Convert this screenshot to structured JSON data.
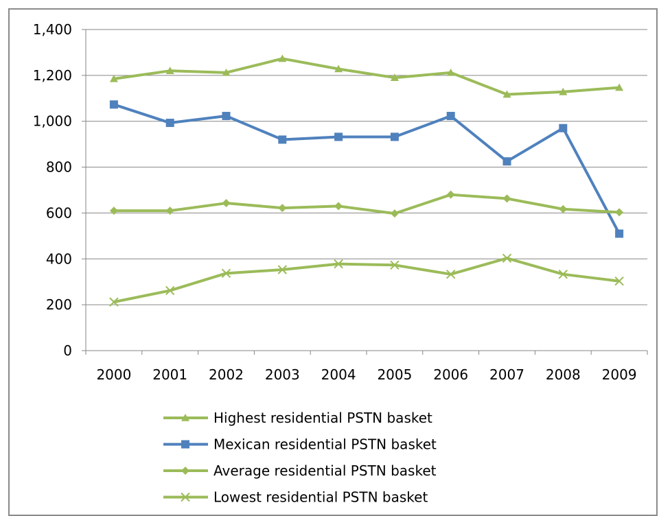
{
  "chart_data": {
    "type": "line",
    "categories": [
      "2000",
      "2001",
      "2002",
      "2003",
      "2004",
      "2005",
      "2006",
      "2007",
      "2008",
      "2009"
    ],
    "ylim": [
      0,
      1400
    ],
    "yticks": [
      0,
      200,
      400,
      600,
      800,
      1000,
      1200,
      1400
    ],
    "ytick_labels": [
      "0",
      "200",
      "400",
      "600",
      "800",
      "1,000",
      "1,200",
      "1,400"
    ],
    "grid": true,
    "legend_position": "bottom",
    "series": [
      {
        "name": "Highest residential PSTN basket",
        "color": "#9bbb59",
        "marker": "triangle",
        "values": [
          1185,
          1220,
          1212,
          1273,
          1228,
          1190,
          1212,
          1117,
          1128,
          1147
        ]
      },
      {
        "name": "Mexican residential PSTN basket",
        "color": "#4f81bd",
        "marker": "square",
        "values": [
          1073,
          993,
          1023,
          920,
          932,
          932,
          1023,
          825,
          970,
          510
        ]
      },
      {
        "name": "Average residential PSTN basket",
        "color": "#9bbb59",
        "marker": "diamond",
        "values": [
          610,
          610,
          643,
          622,
          630,
          598,
          680,
          663,
          617,
          603
        ]
      },
      {
        "name": "Lowest residential PSTN basket",
        "color": "#9bbb59",
        "marker": "x",
        "values": [
          212,
          262,
          337,
          353,
          378,
          373,
          333,
          403,
          333,
          303
        ]
      }
    ]
  }
}
